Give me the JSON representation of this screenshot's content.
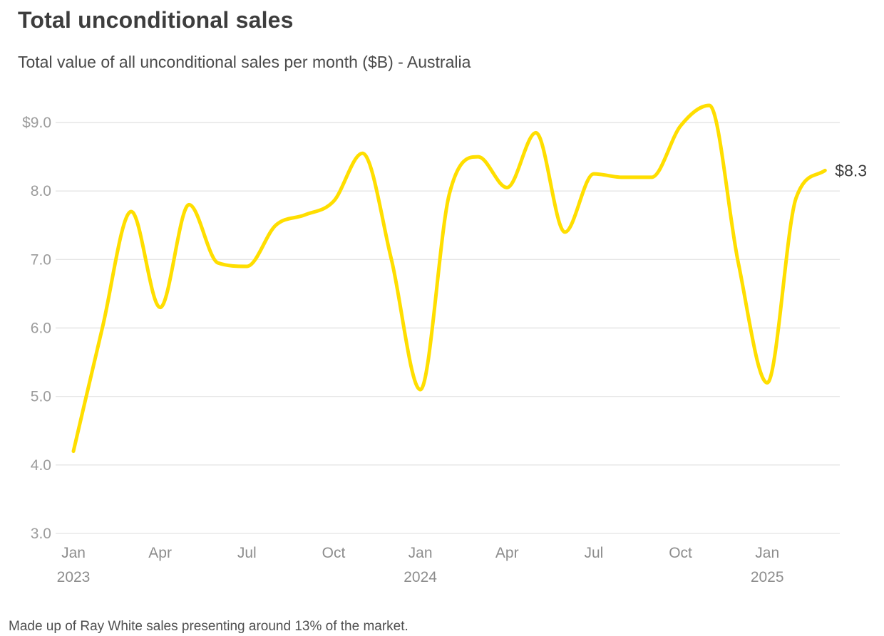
{
  "header": {
    "title": "Total unconditional sales",
    "subtitle": "Total value of all unconditional sales per month ($B) - Australia"
  },
  "footer": {
    "note": "Made up of Ray White sales presenting around 13% of the market."
  },
  "chart_data": {
    "type": "line",
    "title": "Total unconditional sales",
    "subtitle": "Total value of all unconditional sales per month ($B) - Australia",
    "unit": "$B",
    "region": "Australia",
    "categories": [
      "Jan 2023",
      "Feb 2023",
      "Mar 2023",
      "Apr 2023",
      "May 2023",
      "Jun 2023",
      "Jul 2023",
      "Aug 2023",
      "Sep 2023",
      "Oct 2023",
      "Nov 2023",
      "Dec 2023",
      "Jan 2024",
      "Feb 2024",
      "Mar 2024",
      "Apr 2024",
      "May 2024",
      "Jun 2024",
      "Jul 2024",
      "Aug 2024",
      "Sep 2024",
      "Oct 2024",
      "Nov 2024",
      "Dec 2024",
      "Jan 2025",
      "Feb 2025",
      "Mar 2025"
    ],
    "values": [
      4.2,
      6.0,
      7.7,
      6.3,
      7.8,
      6.95,
      6.9,
      7.5,
      7.65,
      7.85,
      8.55,
      7.0,
      5.1,
      7.95,
      8.5,
      8.05,
      8.85,
      7.4,
      8.25,
      8.2,
      8.2,
      8.95,
      9.25,
      6.95,
      5.2,
      7.9,
      8.3
    ],
    "end_label": "$8.3",
    "ylim": [
      3.0,
      9.0
    ],
    "grid": true,
    "legend_position": "none",
    "line_color": "#FFDE00",
    "grid_color": "#e6e6e6",
    "y_axis": {
      "ticks": [
        {
          "label": "$9.0",
          "value": 9.0
        },
        {
          "label": "8.0",
          "value": 8.0
        },
        {
          "label": "7.0",
          "value": 7.0
        },
        {
          "label": "6.0",
          "value": 6.0
        },
        {
          "label": "5.0",
          "value": 5.0
        },
        {
          "label": "4.0",
          "value": 4.0
        },
        {
          "label": "3.0",
          "value": 3.0
        }
      ]
    },
    "x_axis": {
      "ticks": [
        {
          "label": "Jan",
          "year": "2023",
          "month_index": 0
        },
        {
          "label": "Apr",
          "year": "",
          "month_index": 3
        },
        {
          "label": "Jul",
          "year": "",
          "month_index": 6
        },
        {
          "label": "Oct",
          "year": "",
          "month_index": 9
        },
        {
          "label": "Jan",
          "year": "2024",
          "month_index": 12
        },
        {
          "label": "Apr",
          "year": "",
          "month_index": 15
        },
        {
          "label": "Jul",
          "year": "",
          "month_index": 18
        },
        {
          "label": "Oct",
          "year": "",
          "month_index": 21
        },
        {
          "label": "Jan",
          "year": "2025",
          "month_index": 24
        }
      ]
    }
  }
}
